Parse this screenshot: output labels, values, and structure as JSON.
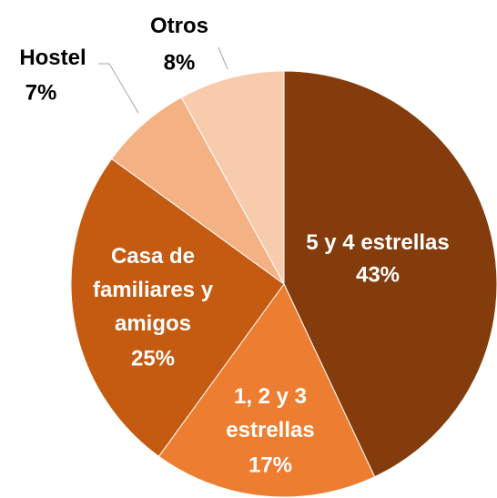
{
  "chart_data": {
    "type": "pie",
    "categories": [
      "5 y 4 estrellas",
      "1, 2 y 3 estrellas",
      "Casa de familiares y amigos",
      "Hostel",
      "Otros"
    ],
    "values": [
      43,
      17,
      25,
      7,
      8
    ],
    "value_labels": [
      "43%",
      "17%",
      "25%",
      "7%",
      "8%"
    ],
    "colors": [
      "#843c0c",
      "#ed7d31",
      "#c55a11",
      "#f4b183",
      "#f8cbad"
    ]
  }
}
